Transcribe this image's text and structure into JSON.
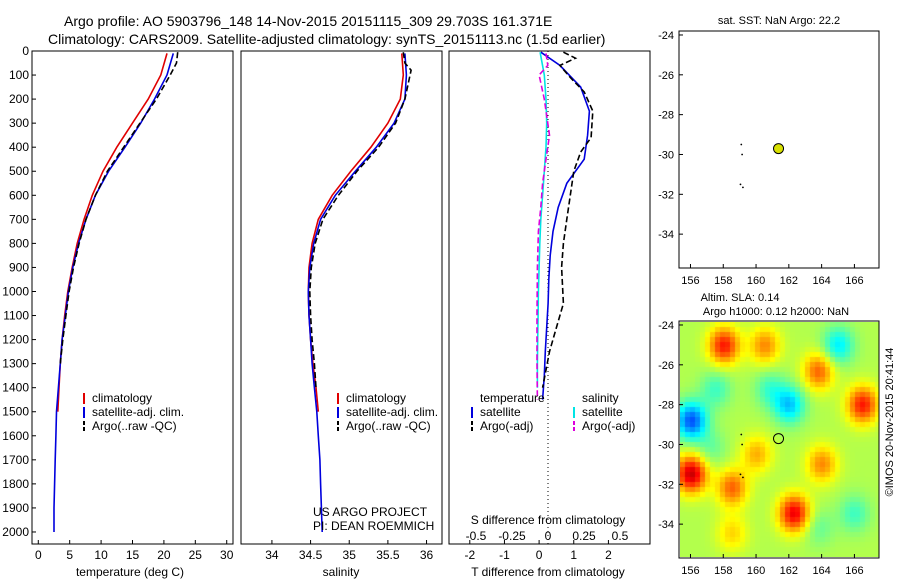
{
  "header": {
    "title_line1": "Argo profile: AO 5903796_148 14-Nov-2015 20151115_309 29.703S 161.371E",
    "title_line2": "Climatology: CARS2009. Satellite-adjusted climatology: synTS_20151113.nc (1.5d earlier)"
  },
  "colors": {
    "climatology": "#e00000",
    "satellite": "#0000dd",
    "argo": "#000000",
    "salinity_sat": "#00e5e5",
    "salinity_argo": "#dd00dd",
    "argo_dot": "#d8e000"
  },
  "chart_data": [
    {
      "id": "temperature-profile",
      "type": "line",
      "xlabel": "temperature (deg C)",
      "xlim": [
        -1,
        31
      ],
      "ylim": [
        2050,
        0
      ],
      "xticks": [
        0,
        5,
        10,
        15,
        20,
        25,
        30
      ],
      "yticks": [
        0,
        100,
        200,
        300,
        400,
        500,
        600,
        700,
        800,
        900,
        1000,
        1100,
        1200,
        1300,
        1400,
        1500,
        1600,
        1700,
        1800,
        1900,
        2000
      ],
      "legend": [
        "climatology",
        "satellite-adj. clim.",
        "Argo(..raw -QC)"
      ],
      "series": [
        {
          "name": "climatology",
          "style": "solid",
          "color": "#e00000",
          "x": [
            20.5,
            19.5,
            17.5,
            15,
            12.5,
            10.3,
            8.6,
            7.3,
            6.2,
            5.4,
            4.7,
            4.2,
            3.8,
            3.5,
            3.3,
            3.1
          ],
          "y": [
            10,
            100,
            200,
            300,
            400,
            500,
            600,
            700,
            800,
            900,
            1000,
            1100,
            1200,
            1300,
            1400,
            1500
          ]
        },
        {
          "name": "satellite-adj. clim.",
          "style": "solid",
          "color": "#0000dd",
          "x": [
            21.5,
            20.5,
            18.5,
            16.3,
            13.8,
            11.2,
            9.1,
            7.6,
            6.4,
            5.5,
            4.8,
            4.3,
            3.8,
            3.5,
            3.2,
            2.9,
            2.8,
            2.7,
            2.6,
            2.5,
            2.5
          ],
          "y": [
            10,
            100,
            200,
            300,
            400,
            500,
            600,
            700,
            800,
            900,
            1000,
            1100,
            1200,
            1300,
            1400,
            1500,
            1600,
            1700,
            1800,
            1900,
            2000
          ]
        },
        {
          "name": "Argo(..raw -QC)",
          "style": "dashed",
          "color": "#000000",
          "x": [
            22.2,
            22,
            21,
            18.8,
            16.2,
            13.6,
            11,
            9.1,
            7.6,
            6.5,
            5.6,
            4.9,
            4.4,
            3.9,
            3.5
          ],
          "y": [
            5,
            50,
            100,
            200,
            300,
            400,
            500,
            600,
            700,
            800,
            900,
            1000,
            1100,
            1200,
            1300
          ]
        }
      ]
    },
    {
      "id": "salinity-profile",
      "type": "line",
      "xlabel": "salinity",
      "xlim": [
        33.6,
        36.2
      ],
      "ylim": [
        2050,
        0
      ],
      "xticks": [
        34,
        34.5,
        35,
        35.5,
        36
      ],
      "legend": [
        "climatology",
        "satellite-adj. clim.",
        "Argo(..raw -QC)"
      ],
      "series": [
        {
          "name": "climatology",
          "style": "solid",
          "color": "#e00000",
          "x": [
            35.68,
            35.7,
            35.66,
            35.5,
            35.28,
            35.02,
            34.78,
            34.6,
            34.52,
            34.48,
            34.47,
            34.48,
            34.5,
            34.53,
            34.57,
            34.6
          ],
          "y": [
            10,
            100,
            200,
            300,
            400,
            500,
            600,
            700,
            800,
            900,
            1000,
            1100,
            1200,
            1300,
            1400,
            1500
          ]
        },
        {
          "name": "satellite-adj. clim.",
          "style": "solid",
          "color": "#0000dd",
          "x": [
            35.72,
            35.74,
            35.72,
            35.58,
            35.35,
            35.08,
            34.82,
            34.63,
            34.54,
            34.49,
            34.47,
            34.48,
            34.5,
            34.52,
            34.55,
            34.58,
            34.6,
            34.62,
            34.63,
            34.64,
            34.65
          ],
          "y": [
            10,
            100,
            200,
            300,
            400,
            500,
            600,
            700,
            800,
            900,
            1000,
            1100,
            1200,
            1300,
            1400,
            1500,
            1600,
            1700,
            1800,
            1900,
            2000
          ]
        },
        {
          "name": "Argo(..raw -QC)",
          "style": "dashed",
          "color": "#000000",
          "x": [
            35.7,
            35.72,
            35.8,
            35.72,
            35.6,
            35.38,
            35.1,
            34.86,
            34.66,
            34.56,
            34.51,
            34.49,
            34.5,
            34.52,
            34.55,
            34.57
          ],
          "y": [
            5,
            50,
            80,
            200,
            300,
            400,
            500,
            600,
            700,
            800,
            900,
            1000,
            1100,
            1200,
            1300,
            1400
          ]
        }
      ],
      "annotations": [
        "US ARGO PROJECT",
        "PI: DEAN ROEMMICH"
      ]
    },
    {
      "id": "difference-profile",
      "type": "line",
      "xlabel": "T difference from climatology",
      "x2label": "S difference from climatology",
      "xlim": [
        -2.6,
        3.2
      ],
      "ylim": [
        2050,
        0
      ],
      "xticks": [
        -2,
        -1,
        0,
        1,
        2
      ],
      "x2ticks": [
        -0.5,
        -0.25,
        0,
        0.25,
        0.5
      ],
      "legend_titles": [
        "temperature",
        "salinity"
      ],
      "legend": [
        "satellite",
        "Argo(-adj)",
        "satellite",
        "Argo(-adj)"
      ],
      "series": [
        {
          "name": "satellite",
          "group": "temperature",
          "style": "solid",
          "color": "#0000dd",
          "x": [
            0.05,
            0.6,
            1.2,
            1.45,
            1.4,
            1.3,
            0.8,
            0.55,
            0.4,
            0.32,
            0.28,
            0.26,
            0.22,
            0.18,
            0.15,
            0.1
          ],
          "y": [
            5,
            60,
            150,
            250,
            350,
            450,
            550,
            650,
            750,
            850,
            950,
            1050,
            1150,
            1250,
            1350,
            1450
          ]
        },
        {
          "name": "Argo(-adj)",
          "group": "temperature",
          "style": "dashed",
          "color": "#000000",
          "x": [
            0.7,
            1.05,
            0.6,
            0.9,
            1.3,
            1.55,
            1.5,
            1.2,
            1,
            0.9,
            0.8,
            0.7,
            0.65,
            0.7,
            0.5,
            0.3,
            0.1
          ],
          "y": [
            5,
            30,
            60,
            110,
            170,
            250,
            360,
            420,
            500,
            600,
            700,
            800,
            900,
            1050,
            1150,
            1250,
            1400
          ]
        },
        {
          "name": "satellite",
          "group": "salinity",
          "style": "solid",
          "color": "#00e5e5",
          "x": [
            0.03,
            0.15,
            0.2,
            0.22,
            0.2,
            0.15,
            0.1,
            0.05,
            0.02,
            0,
            -0.02,
            -0.03,
            -0.04,
            -0.05,
            -0.05
          ],
          "y": [
            5,
            100,
            200,
            300,
            400,
            500,
            600,
            700,
            800,
            900,
            1000,
            1100,
            1200,
            1300,
            1400
          ]
        },
        {
          "name": "Argo(-adj)",
          "group": "salinity",
          "style": "dashed",
          "color": "#dd00dd",
          "x": [
            0.2,
            0.25,
            0,
            0.15,
            0.3,
            0.2,
            0.1,
            0.05,
            -0.02,
            -0.05,
            -0.06,
            -0.06,
            -0.05
          ],
          "y": [
            10,
            60,
            100,
            200,
            350,
            450,
            550,
            650,
            750,
            900,
            1100,
            1300,
            1450
          ]
        }
      ]
    },
    {
      "id": "sst-map",
      "type": "scatter",
      "title": "sat. SST: NaN Argo: 22.2",
      "xlim": [
        155.3,
        167.5
      ],
      "ylim": [
        -35.7,
        -23.8
      ],
      "xticks": [
        156,
        158,
        160,
        162,
        164,
        166
      ],
      "yticks": [
        -24,
        -26,
        -28,
        -30,
        -32,
        -34
      ],
      "argo_position": {
        "lon": 161.371,
        "lat": -29.703
      },
      "previous_positions": [
        {
          "lon": 159.1,
          "lat": -29.5
        },
        {
          "lon": 159.15,
          "lat": -30.0
        },
        {
          "lon": 159.05,
          "lat": -31.5
        },
        {
          "lon": 159.2,
          "lat": -31.65
        }
      ]
    },
    {
      "id": "sla-map",
      "type": "heatmap",
      "title_line1": "Altim. SLA: 0.14",
      "title_line2": "Argo h1000: 0.12 h2000: NaN",
      "xlim": [
        155.3,
        167.5
      ],
      "ylim": [
        -35.7,
        -23.8
      ],
      "xticks": [
        156,
        158,
        160,
        162,
        164,
        166
      ],
      "yticks": [
        -24,
        -26,
        -28,
        -30,
        -32,
        -34
      ],
      "argo_position": {
        "lon": 161.371,
        "lat": -29.703
      },
      "previous_positions": [
        {
          "lon": 159.1,
          "lat": -29.5
        },
        {
          "lon": 159.15,
          "lat": -30.0
        },
        {
          "lon": 159.05,
          "lat": -31.5
        },
        {
          "lon": 159.2,
          "lat": -31.65
        }
      ],
      "colormap": "jet",
      "anomalies": [
        {
          "lon": 158,
          "lat": -25,
          "v": 0.8
        },
        {
          "lon": 160.5,
          "lat": -25,
          "v": 0.5
        },
        {
          "lon": 165,
          "lat": -25,
          "v": -0.5
        },
        {
          "lon": 163.8,
          "lat": -26.3,
          "v": 0.6
        },
        {
          "lon": 157.5,
          "lat": -27.2,
          "v": -0.3
        },
        {
          "lon": 156,
          "lat": -28.8,
          "v": -0.9
        },
        {
          "lon": 162,
          "lat": -28,
          "v": -0.6
        },
        {
          "lon": 166.5,
          "lat": -28,
          "v": 0.8
        },
        {
          "lon": 160.8,
          "lat": -27.2,
          "v": -0.3
        },
        {
          "lon": 160,
          "lat": -30.5,
          "v": 0.4
        },
        {
          "lon": 164,
          "lat": -31,
          "v": 0.5
        },
        {
          "lon": 156,
          "lat": -31.5,
          "v": 1.0
        },
        {
          "lon": 158.5,
          "lat": -32.2,
          "v": 0.6
        },
        {
          "lon": 162.3,
          "lat": -33.5,
          "v": 0.9
        },
        {
          "lon": 166,
          "lat": -33.5,
          "v": -0.3
        },
        {
          "lon": 158.5,
          "lat": -34.5,
          "v": 0.3
        },
        {
          "lon": 163.8,
          "lat": -34.2,
          "v": -0.2
        },
        {
          "lon": 157.2,
          "lat": -30.2,
          "v": -0.2
        }
      ]
    }
  ],
  "sidebar": {
    "credit": "©IMOS 20-Nov-2015 20:41:44"
  }
}
